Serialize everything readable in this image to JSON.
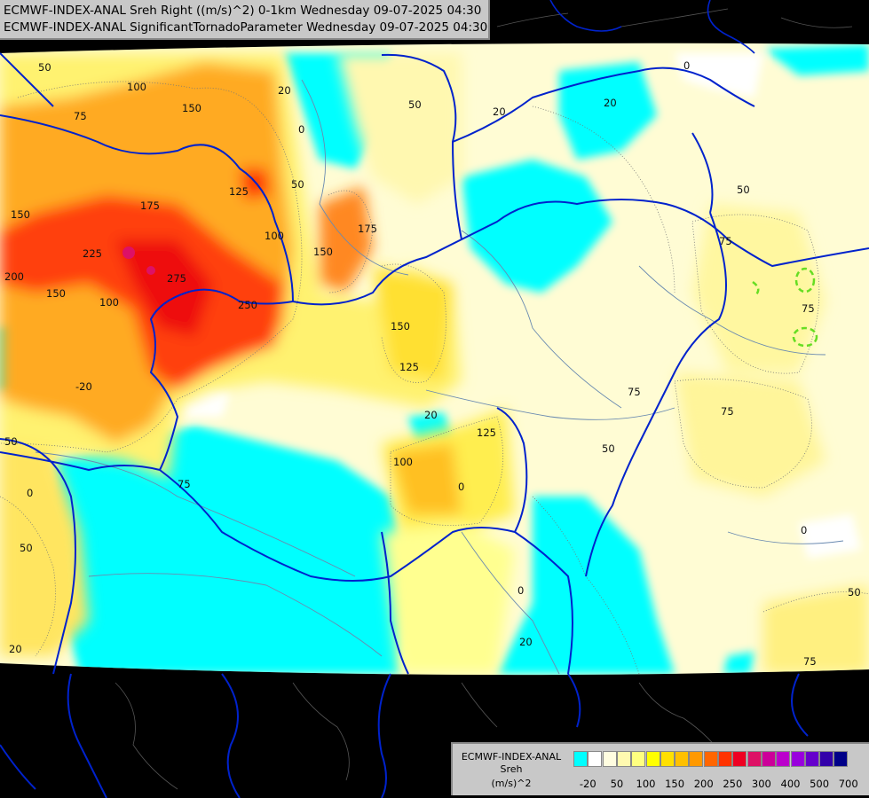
{
  "header": {
    "line1": "ECMWF-INDEX-ANAL Sreh Right ((m/s)^2) 0-1km Wednesday 09-07-2025 04:30",
    "line2": "ECMWF-INDEX-ANAL SignificantTornadoParameter Wednesday 09-07-2025 04:30"
  },
  "legend": {
    "line1": "ECMWF-INDEX-ANAL",
    "line2": "Sreh",
    "line3": "(m/s)^2",
    "colors": [
      "#00ffff",
      "#ffffff",
      "#fffde0",
      "#fffab0",
      "#ffff80",
      "#ffff00",
      "#ffe000",
      "#ffc000",
      "#ff9900",
      "#ff6600",
      "#ff3300",
      "#ee0022",
      "#dd1166",
      "#cc0099",
      "#bb00cc",
      "#9900dd",
      "#6600cc",
      "#3300aa",
      "#000088"
    ],
    "ticks": [
      "-20",
      "50",
      "100",
      "150",
      "200",
      "250",
      "300",
      "400",
      "500",
      "700"
    ]
  },
  "map_labels": [
    "50",
    "100",
    "150",
    "75",
    "175",
    "125",
    "100",
    "150",
    "225",
    "275",
    "250",
    "200",
    "150",
    "100",
    "50",
    "20",
    "20",
    "50",
    "75",
    "75",
    "0",
    "150",
    "125",
    "20",
    "125",
    "100",
    "0",
    "50",
    "75",
    "75",
    "0",
    "50",
    "50",
    "20",
    "0",
    "75",
    "20",
    "50",
    "0",
    "-20",
    "20",
    "75",
    "50",
    "0",
    "175",
    "150"
  ]
}
